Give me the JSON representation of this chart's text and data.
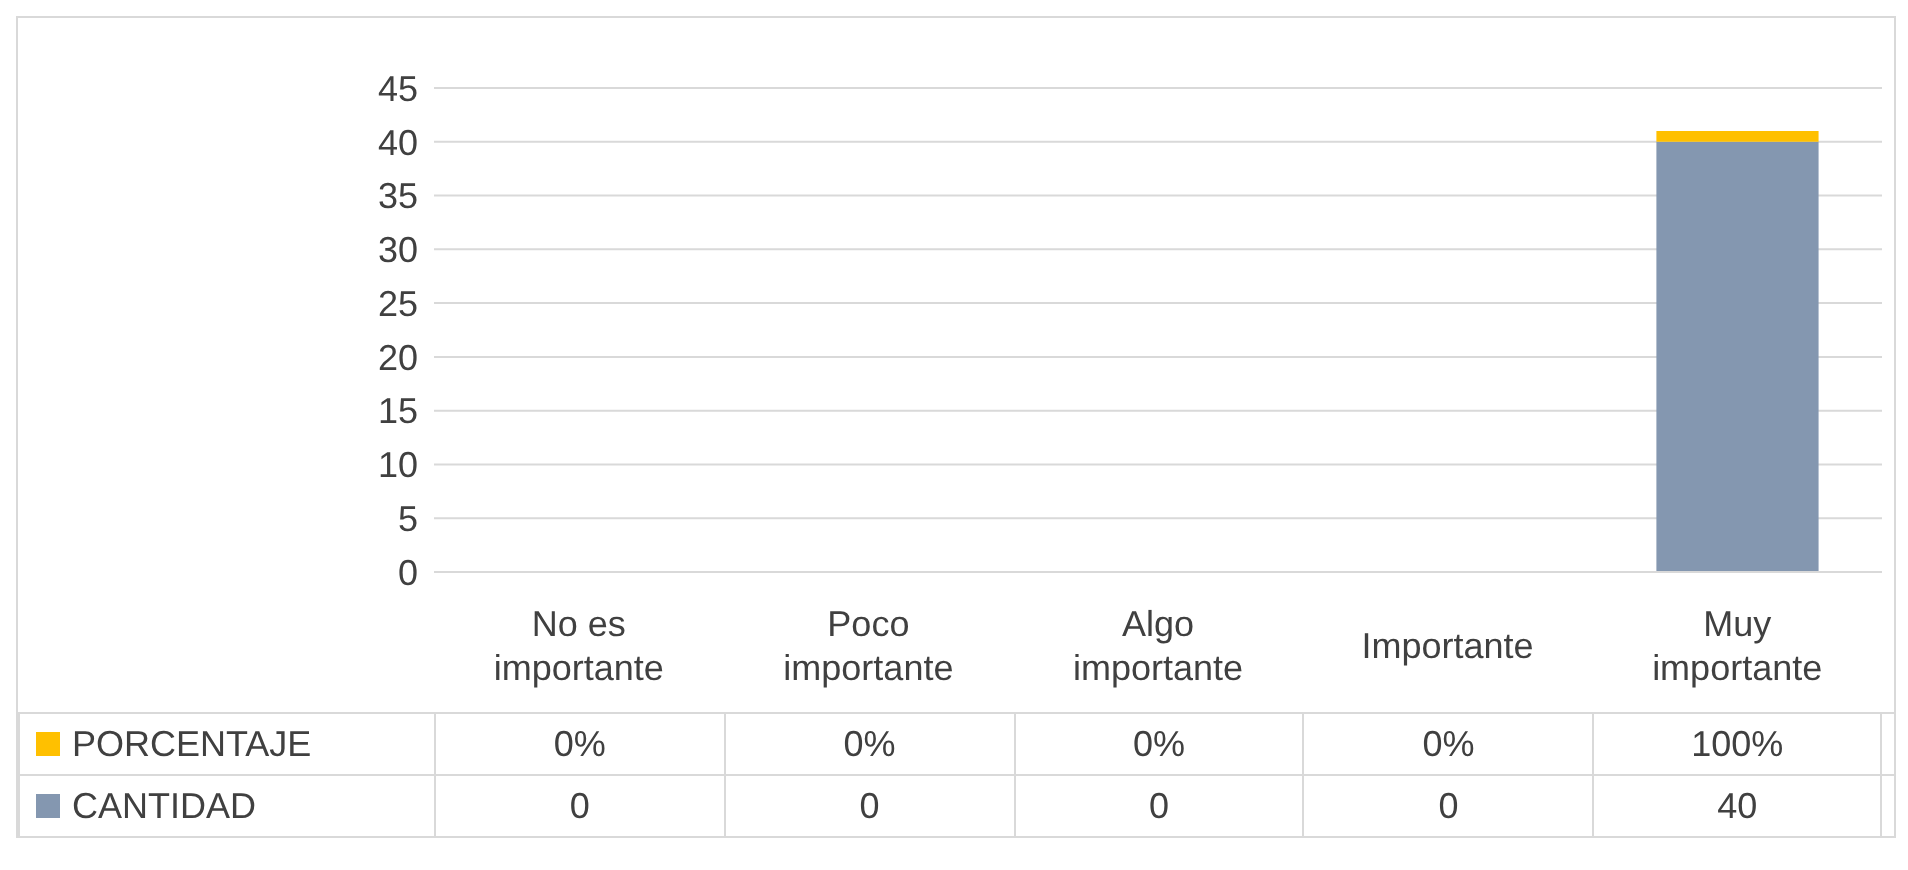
{
  "chart_data": {
    "type": "bar",
    "stacked": true,
    "categories": [
      "No es importante",
      "Poco importante",
      "Algo importante",
      "Importante",
      "Muy importante"
    ],
    "series": [
      {
        "name": "CANTIDAD",
        "color": "#8497b0",
        "values": [
          0,
          0,
          0,
          0,
          40
        ],
        "value_labels": [
          "0",
          "0",
          "0",
          "0",
          "40"
        ]
      },
      {
        "name": "PORCENTAJE",
        "color": "#ffc000",
        "values": [
          0,
          0,
          0,
          0,
          1
        ],
        "value_labels": [
          "0%",
          "0%",
          "0%",
          "0%",
          "100%"
        ]
      }
    ],
    "ylim": [
      0,
      45
    ],
    "yticks": [
      0,
      5,
      10,
      15,
      20,
      25,
      30,
      35,
      40,
      45
    ],
    "grid": "y",
    "legend": "bottom"
  }
}
